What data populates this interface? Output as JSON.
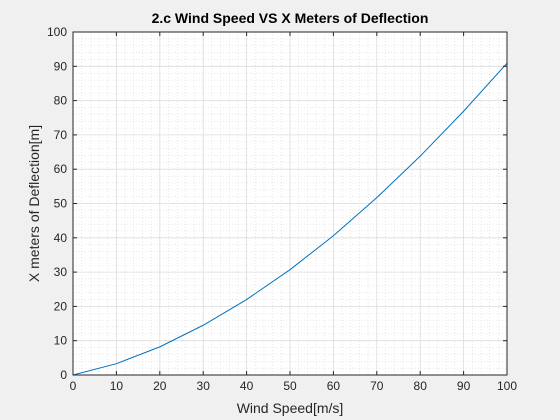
{
  "chart_data": {
    "type": "line",
    "title": "2.c Wind Speed VS X Meters of Deflection",
    "xlabel": "Wind Speed[m/s]",
    "ylabel": "X meters of Deflection[m]",
    "xlim": [
      0,
      100
    ],
    "ylim": [
      0,
      100
    ],
    "xticks": [
      0,
      10,
      20,
      30,
      40,
      50,
      60,
      70,
      80,
      90,
      100
    ],
    "yticks": [
      0,
      10,
      20,
      30,
      40,
      50,
      60,
      70,
      80,
      90,
      100
    ],
    "grid": true,
    "minor_grid": true,
    "series": [
      {
        "name": "",
        "color": "#0072BD",
        "x": [
          0,
          10,
          20,
          30,
          40,
          50,
          60,
          70,
          80,
          90,
          100
        ],
        "y": [
          0,
          3.3,
          8.2,
          14.5,
          22.0,
          30.7,
          40.6,
          51.7,
          63.8,
          76.9,
          90.9
        ]
      }
    ]
  }
}
